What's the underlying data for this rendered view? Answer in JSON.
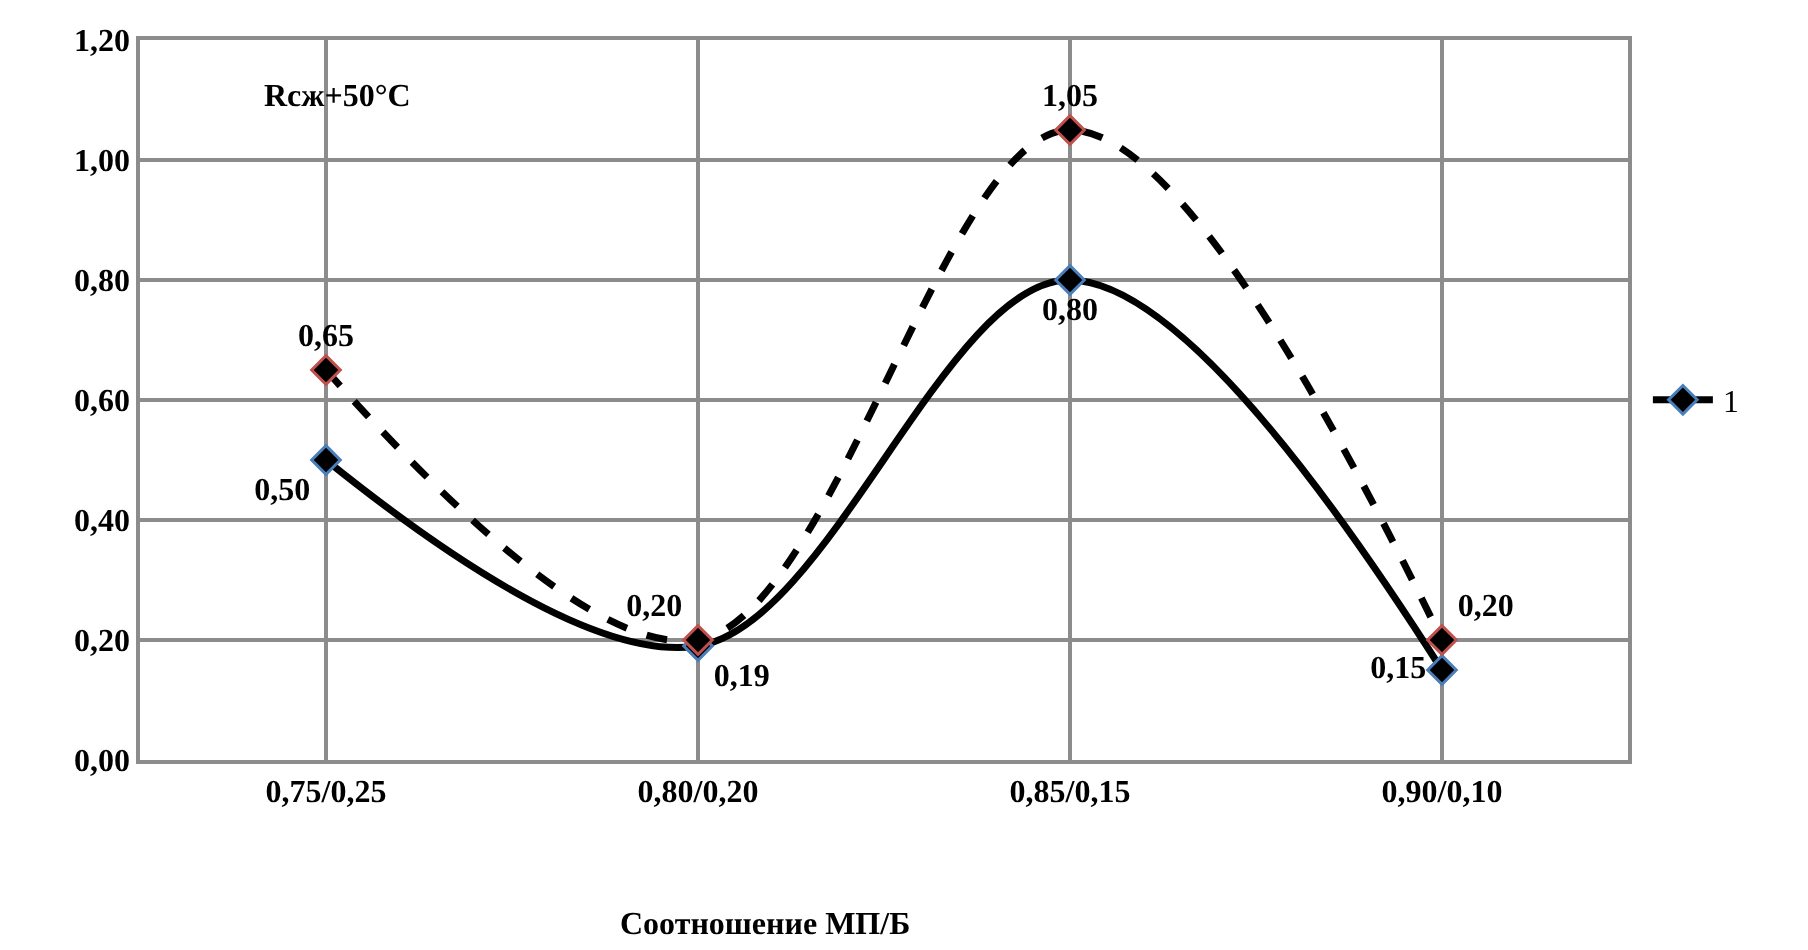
{
  "chart_data": {
    "type": "line",
    "annotations": [
      "Rcж+50°C"
    ],
    "xlabel": "Соотношение МП/Б",
    "categories": [
      "0,75/0,25",
      "0,80/0,20",
      "0,85/0,15",
      "0,90/0,10"
    ],
    "series": [
      {
        "name": "1",
        "color": "#000000",
        "values": [
          0.5,
          0.19,
          0.8,
          0.15
        ],
        "value_labels": [
          "0,50",
          "0,19",
          "0,80",
          "0,15"
        ],
        "line_style": "solid"
      },
      {
        "color": "#000000",
        "values": [
          0.65,
          0.2,
          1.05,
          0.2
        ],
        "value_labels": [
          "0,65",
          "0,20",
          "1,05",
          "0,20"
        ],
        "line_style": "dashed"
      }
    ],
    "ylim": [
      0,
      1.2
    ],
    "yticks": [
      {
        "value": 0,
        "label": "0,00"
      },
      {
        "value": 0.2,
        "label": "0,20"
      },
      {
        "value": 0.4,
        "label": "0,40"
      },
      {
        "value": 0.6,
        "label": "0,60"
      },
      {
        "value": 0.8,
        "label": "0,80"
      },
      {
        "value": 1.0,
        "label": "1,00"
      },
      {
        "value": 1.2,
        "label": "1,20"
      }
    ],
    "grid": true,
    "legend": "right",
    "marker": "diamond"
  }
}
